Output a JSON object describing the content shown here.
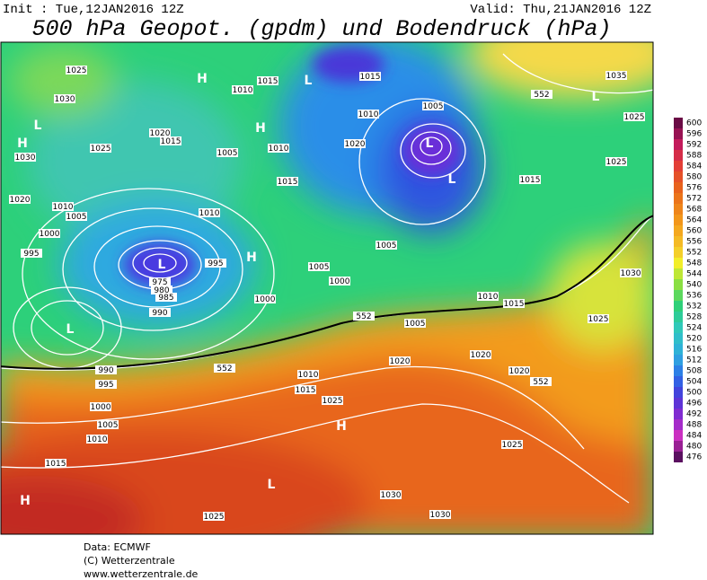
{
  "header": {
    "init": "Init : Tue,12JAN2016 12Z",
    "valid": "Valid: Thu,21JAN2016 12Z",
    "title": "500 hPa Geopot. (gpdm) und Bodendruck (hPa)"
  },
  "map_labels": [
    "H",
    "H",
    "L",
    "H",
    "L",
    "L",
    "L",
    "L",
    "H",
    "L",
    "H",
    "L",
    "H",
    "L",
    "1025",
    "1030",
    "1030",
    "1025",
    "1020",
    "1015",
    "1010",
    "1015",
    "1015",
    "1010",
    "1005",
    "1020",
    "1005",
    "1010",
    "1015",
    "1010",
    "1020",
    "1010",
    "1005",
    "1000",
    "995",
    "995",
    "975",
    "980",
    "985",
    "990",
    "1005",
    "1000",
    "1000",
    "1005",
    "1015",
    "1025",
    "1035",
    "1025",
    "1030",
    "1025",
    "1010",
    "1015",
    "1005",
    "990",
    "995",
    "1000",
    "1005",
    "1010",
    "1015",
    "1010",
    "1015",
    "1025",
    "1020",
    "1020",
    "1020",
    "1025",
    "1030",
    "1030",
    "1025",
    "552",
    "552",
    "552",
    "552"
  ],
  "colorbar": [
    "600",
    "596",
    "592",
    "588",
    "584",
    "580",
    "576",
    "572",
    "568",
    "564",
    "560",
    "556",
    "552",
    "548",
    "544",
    "540",
    "536",
    "532",
    "528",
    "524",
    "520",
    "516",
    "512",
    "508",
    "504",
    "500",
    "496",
    "492",
    "488",
    "484",
    "480",
    "476"
  ],
  "footer": [
    "Data: ECMWF",
    "(C) Wetterzentrale",
    "www.wetterzentrale.de"
  ]
}
